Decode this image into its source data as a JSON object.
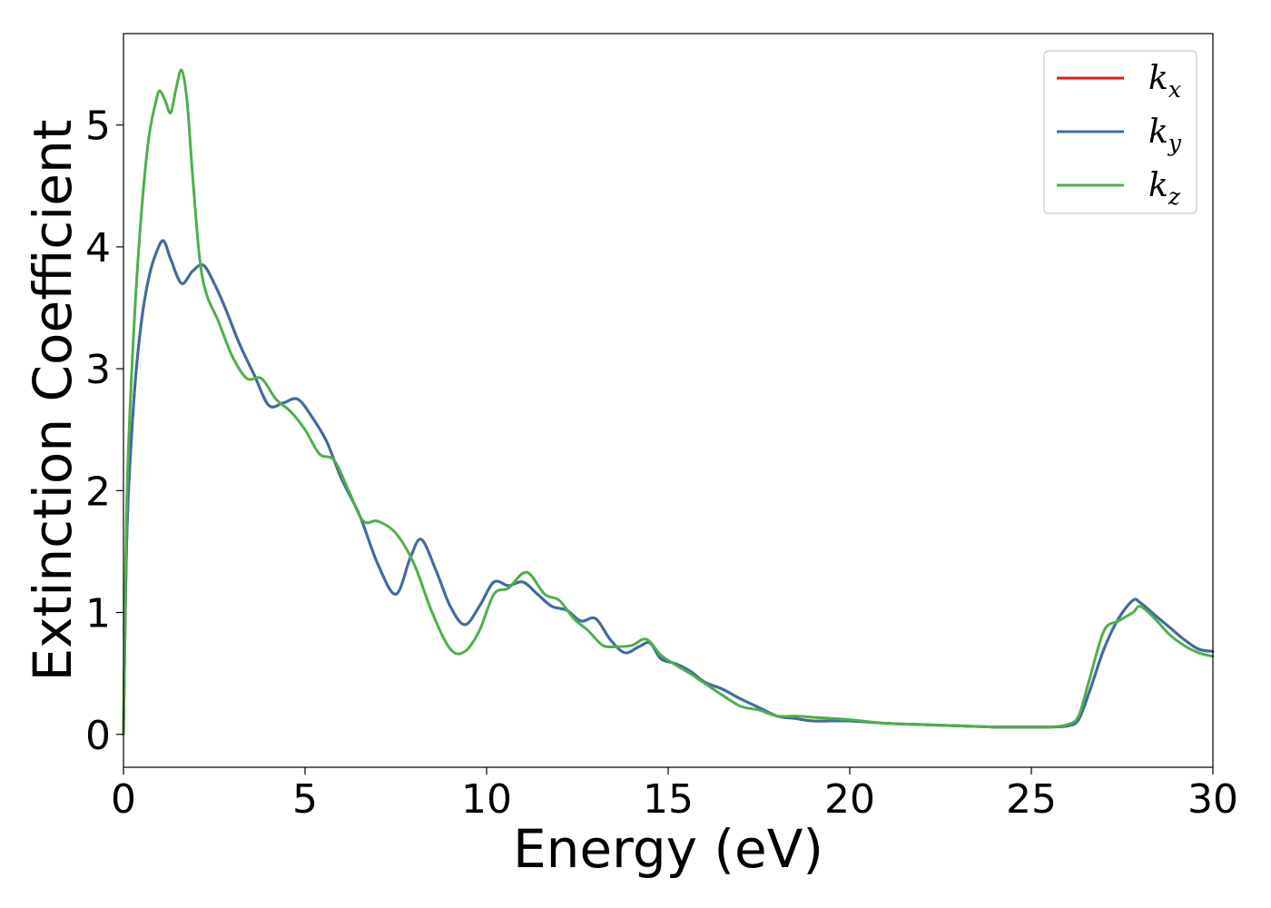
{
  "chart_data": {
    "type": "line",
    "title": "",
    "xlabel": "Energy (eV)",
    "ylabel": "Extinction Coefficient",
    "xlim": [
      0,
      30
    ],
    "ylim": [
      -0.27,
      5.75
    ],
    "xticks": [
      0,
      5,
      10,
      15,
      20,
      25,
      30
    ],
    "xtick_labels": [
      "0",
      "5",
      "10",
      "15",
      "20",
      "25",
      "30"
    ],
    "yticks": [
      0,
      1,
      2,
      3,
      4,
      5
    ],
    "ytick_labels": [
      "0",
      "1",
      "2",
      "3",
      "4",
      "5"
    ],
    "grid": false,
    "legend_position": "top-right",
    "series": [
      {
        "name": "k",
        "subscript": "x",
        "color": "#e41a1c",
        "x": [
          0,
          0.1,
          0.3,
          0.5,
          0.7,
          0.9,
          1.1,
          1.3,
          1.6,
          1.9,
          2.2,
          2.5,
          2.8,
          3.2,
          3.6,
          4.0,
          4.4,
          4.8,
          5.2,
          5.6,
          6.0,
          6.5,
          7.0,
          7.5,
          7.9,
          8.2,
          8.6,
          9.0,
          9.4,
          9.8,
          10.2,
          10.6,
          11.0,
          11.4,
          11.8,
          12.2,
          12.6,
          13.0,
          13.4,
          13.8,
          14.2,
          14.5,
          14.8,
          15.2,
          15.6,
          16.0,
          16.5,
          17.0,
          17.5,
          18.0,
          18.5,
          19.0,
          20.0,
          21.0,
          22.0,
          23.0,
          24.0,
          24.5,
          25.0,
          25.5,
          26.0,
          26.3,
          26.6,
          27.0,
          27.4,
          27.8,
          28.0,
          28.4,
          28.8,
          29.2,
          29.6,
          30.0
        ],
        "values": [
          0,
          1.7,
          2.8,
          3.4,
          3.75,
          3.95,
          4.05,
          3.9,
          3.7,
          3.8,
          3.85,
          3.7,
          3.5,
          3.2,
          2.95,
          2.7,
          2.72,
          2.75,
          2.6,
          2.4,
          2.1,
          1.8,
          1.4,
          1.15,
          1.45,
          1.6,
          1.35,
          1.05,
          0.9,
          1.05,
          1.25,
          1.22,
          1.25,
          1.15,
          1.05,
          1.02,
          0.93,
          0.95,
          0.78,
          0.67,
          0.72,
          0.75,
          0.62,
          0.58,
          0.52,
          0.43,
          0.37,
          0.29,
          0.22,
          0.15,
          0.13,
          0.11,
          0.11,
          0.09,
          0.08,
          0.07,
          0.06,
          0.06,
          0.06,
          0.06,
          0.07,
          0.12,
          0.35,
          0.7,
          0.95,
          1.1,
          1.08,
          0.98,
          0.88,
          0.78,
          0.7,
          0.68
        ]
      },
      {
        "name": "k",
        "subscript": "y",
        "color": "#3a6ea5",
        "x": [
          0,
          0.1,
          0.3,
          0.5,
          0.7,
          0.9,
          1.1,
          1.3,
          1.6,
          1.9,
          2.2,
          2.5,
          2.8,
          3.2,
          3.6,
          4.0,
          4.4,
          4.8,
          5.2,
          5.6,
          6.0,
          6.5,
          7.0,
          7.5,
          7.9,
          8.2,
          8.6,
          9.0,
          9.4,
          9.8,
          10.2,
          10.6,
          11.0,
          11.4,
          11.8,
          12.2,
          12.6,
          13.0,
          13.4,
          13.8,
          14.2,
          14.5,
          14.8,
          15.2,
          15.6,
          16.0,
          16.5,
          17.0,
          17.5,
          18.0,
          18.5,
          19.0,
          20.0,
          21.0,
          22.0,
          23.0,
          24.0,
          24.5,
          25.0,
          25.5,
          26.0,
          26.3,
          26.6,
          27.0,
          27.4,
          27.8,
          28.0,
          28.4,
          28.8,
          29.2,
          29.6,
          30.0
        ],
        "values": [
          0,
          1.7,
          2.8,
          3.4,
          3.75,
          3.95,
          4.05,
          3.9,
          3.7,
          3.8,
          3.85,
          3.7,
          3.5,
          3.2,
          2.95,
          2.7,
          2.72,
          2.75,
          2.6,
          2.4,
          2.1,
          1.8,
          1.4,
          1.15,
          1.45,
          1.6,
          1.35,
          1.05,
          0.9,
          1.05,
          1.25,
          1.22,
          1.25,
          1.15,
          1.05,
          1.02,
          0.93,
          0.95,
          0.78,
          0.67,
          0.72,
          0.75,
          0.62,
          0.58,
          0.52,
          0.43,
          0.37,
          0.29,
          0.22,
          0.15,
          0.13,
          0.11,
          0.11,
          0.09,
          0.08,
          0.07,
          0.06,
          0.06,
          0.06,
          0.06,
          0.07,
          0.12,
          0.35,
          0.7,
          0.95,
          1.1,
          1.08,
          0.98,
          0.88,
          0.78,
          0.7,
          0.68
        ]
      },
      {
        "name": "k",
        "subscript": "z",
        "color": "#4daf4a",
        "x": [
          0,
          0.1,
          0.3,
          0.5,
          0.7,
          0.9,
          1.0,
          1.15,
          1.3,
          1.45,
          1.6,
          1.75,
          1.9,
          2.1,
          2.3,
          2.6,
          3.0,
          3.4,
          3.8,
          4.2,
          4.6,
          5.0,
          5.4,
          5.8,
          6.2,
          6.6,
          7.0,
          7.5,
          8.0,
          8.5,
          9.0,
          9.4,
          9.8,
          10.2,
          10.6,
          11.1,
          11.6,
          12.0,
          12.4,
          12.8,
          13.2,
          13.6,
          14.0,
          14.4,
          14.8,
          15.2,
          15.6,
          16.0,
          16.5,
          17.0,
          17.5,
          18.0,
          18.5,
          19.0,
          20.0,
          21.0,
          22.0,
          23.0,
          24.0,
          24.5,
          25.0,
          25.5,
          26.0,
          26.3,
          26.6,
          27.0,
          27.4,
          27.8,
          28.0,
          28.4,
          28.8,
          29.2,
          29.6,
          30.0
        ],
        "values": [
          0,
          2.0,
          3.4,
          4.3,
          4.9,
          5.2,
          5.28,
          5.2,
          5.1,
          5.3,
          5.45,
          5.2,
          4.6,
          3.9,
          3.6,
          3.4,
          3.1,
          2.92,
          2.92,
          2.75,
          2.65,
          2.5,
          2.3,
          2.25,
          2.0,
          1.75,
          1.75,
          1.65,
          1.4,
          1.0,
          0.7,
          0.68,
          0.85,
          1.15,
          1.2,
          1.33,
          1.15,
          1.1,
          0.95,
          0.85,
          0.73,
          0.72,
          0.73,
          0.78,
          0.65,
          0.57,
          0.5,
          0.42,
          0.32,
          0.23,
          0.2,
          0.15,
          0.15,
          0.14,
          0.12,
          0.09,
          0.08,
          0.07,
          0.06,
          0.06,
          0.06,
          0.06,
          0.08,
          0.15,
          0.45,
          0.85,
          0.93,
          1.0,
          1.05,
          0.95,
          0.82,
          0.73,
          0.67,
          0.64
        ]
      }
    ]
  }
}
